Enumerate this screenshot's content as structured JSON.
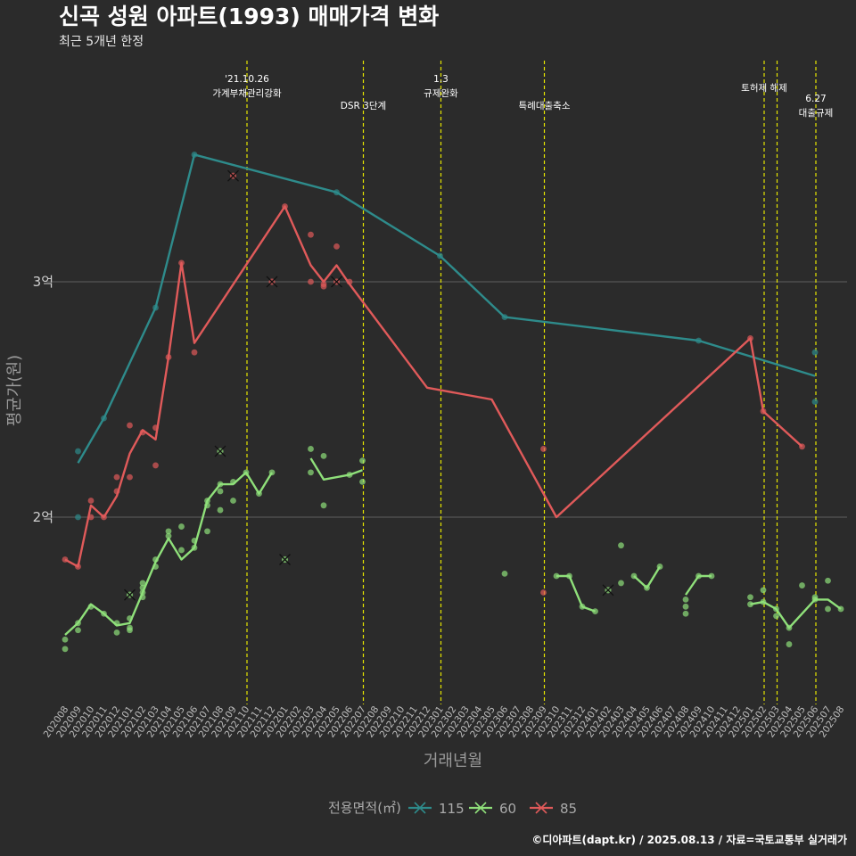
{
  "chart_data": {
    "type": "line",
    "title": "신곡 성원 아파트(1993) 매매가격 변화",
    "subtitle": "최근 5개년 한정",
    "xlabel": "거래년월",
    "ylabel": "평균가(원)",
    "caption": "©디아파트(dapt.kr) / 2025.08.13 / 자료=국토교통부 실거래가",
    "categories": [
      "202008",
      "202009",
      "202010",
      "202011",
      "202012",
      "202101",
      "202102",
      "202103",
      "202104",
      "202105",
      "202106",
      "202107",
      "202108",
      "202109",
      "202110",
      "202111",
      "202112",
      "202201",
      "202202",
      "202203",
      "202204",
      "202205",
      "202206",
      "202207",
      "202208",
      "202209",
      "202210",
      "202211",
      "202212",
      "202301",
      "202302",
      "202303",
      "202304",
      "202305",
      "202306",
      "202307",
      "202308",
      "202309",
      "202310",
      "202311",
      "202312",
      "202401",
      "202402",
      "202403",
      "202404",
      "202405",
      "202406",
      "202407",
      "202408",
      "202409",
      "202410",
      "202411",
      "202412",
      "202501",
      "202502",
      "202503",
      "202504",
      "202505",
      "202506",
      "202507",
      "202508"
    ],
    "y_ticks": [
      {
        "value": 20000,
        "label": "2억"
      },
      {
        "value": 30000,
        "label": "3억"
      }
    ],
    "ylim": [
      12000,
      38000
    ],
    "grid": true,
    "legend": {
      "title": "전용면적(㎡)",
      "position": "bottom"
    },
    "events": [
      {
        "month": "202110",
        "lines": [
          "'21.10.26",
          "가계부채관리강화"
        ]
      },
      {
        "month": "202207",
        "lines": [
          "DSR 3단계"
        ]
      },
      {
        "month": "202301",
        "lines": [
          "1.3",
          "규제완화"
        ]
      },
      {
        "month": "202309",
        "lines": [
          "특례대출축소"
        ]
      },
      {
        "month": "202502",
        "lines": [
          "토허제 해제"
        ]
      },
      {
        "month": "202503",
        "lines": [
          ""
        ]
      },
      {
        "month": "202506",
        "lines": [
          "6.27",
          "대출규제"
        ]
      }
    ],
    "series": [
      {
        "name": "115",
        "color": "#2e8b8b",
        "line": [
          [
            1,
            22300
          ],
          [
            3,
            24200
          ],
          [
            7,
            28900
          ],
          [
            10,
            35400
          ],
          [
            21,
            33800
          ],
          [
            29,
            31100
          ],
          [
            34,
            28500
          ],
          [
            49,
            27500
          ],
          [
            58,
            26000
          ]
        ],
        "points": [
          [
            1,
            22800
          ],
          [
            1,
            20000
          ],
          [
            3,
            24200
          ],
          [
            7,
            28900
          ],
          [
            10,
            35400
          ],
          [
            21,
            33800
          ],
          [
            29,
            31100
          ],
          [
            34,
            28500
          ],
          [
            49,
            27500
          ],
          [
            58,
            27000
          ],
          [
            58,
            24900
          ]
        ],
        "crosses": []
      },
      {
        "name": "60",
        "color": "#8fe07a",
        "line": [
          [
            [
              0,
              15000
            ],
            [
              1,
              15500
            ],
            [
              2,
              16300
            ],
            [
              3,
              15900
            ],
            [
              4,
              15400
            ],
            [
              5,
              15500
            ],
            [
              6,
              16800
            ],
            [
              7,
              18100
            ],
            [
              8,
              19100
            ],
            [
              9,
              18200
            ],
            [
              10,
              18700
            ],
            [
              11,
              20700
            ],
            [
              12,
              21400
            ],
            [
              13,
              21400
            ],
            [
              14,
              21900
            ],
            [
              15,
              21000
            ],
            [
              16,
              21900
            ]
          ],
          [
            [
              19,
              22500
            ],
            [
              20,
              21600
            ],
            [
              22,
              21800
            ],
            [
              23,
              22000
            ]
          ],
          [
            [
              38,
              17500
            ],
            [
              39,
              17500
            ],
            [
              40,
              16200
            ],
            [
              41,
              16000
            ]
          ],
          [
            [
              44,
              17500
            ],
            [
              45,
              17000
            ],
            [
              46,
              17900
            ]
          ],
          [
            [
              48,
              16700
            ],
            [
              49,
              17500
            ],
            [
              50,
              17500
            ]
          ],
          [
            [
              53,
              16300
            ],
            [
              54,
              16400
            ],
            [
              55,
              16100
            ],
            [
              56,
              15300
            ],
            [
              58,
              16500
            ],
            [
              59,
              16500
            ],
            [
              60,
              16100
            ]
          ]
        ],
        "points": [
          [
            0,
            14800
          ],
          [
            0,
            14400
          ],
          [
            1,
            15500
          ],
          [
            1,
            15200
          ],
          [
            2,
            16200
          ],
          [
            3,
            15900
          ],
          [
            4,
            15500
          ],
          [
            4,
            15100
          ],
          [
            5,
            15700
          ],
          [
            5,
            15200
          ],
          [
            5,
            15300
          ],
          [
            6,
            16800
          ],
          [
            6,
            16600
          ],
          [
            6,
            17000
          ],
          [
            6,
            17200
          ],
          [
            7,
            17900
          ],
          [
            7,
            18200
          ],
          [
            8,
            19400
          ],
          [
            8,
            19200
          ],
          [
            9,
            18600
          ],
          [
            9,
            19600
          ],
          [
            10,
            18700
          ],
          [
            10,
            19000
          ],
          [
            11,
            20700
          ],
          [
            11,
            20500
          ],
          [
            11,
            19400
          ],
          [
            12,
            21100
          ],
          [
            12,
            20300
          ],
          [
            12,
            21400
          ],
          [
            13,
            20700
          ],
          [
            13,
            21500
          ],
          [
            14,
            21900
          ],
          [
            15,
            21000
          ],
          [
            16,
            21900
          ],
          [
            19,
            22900
          ],
          [
            19,
            21900
          ],
          [
            20,
            22600
          ],
          [
            20,
            20500
          ],
          [
            22,
            21800
          ],
          [
            23,
            22400
          ],
          [
            23,
            21500
          ],
          [
            34,
            17600
          ],
          [
            38,
            17500
          ],
          [
            39,
            17500
          ],
          [
            40,
            16200
          ],
          [
            41,
            16000
          ],
          [
            43,
            18800
          ],
          [
            43,
            17200
          ],
          [
            44,
            17500
          ],
          [
            45,
            17000
          ],
          [
            46,
            17900
          ],
          [
            48,
            16500
          ],
          [
            48,
            16200
          ],
          [
            48,
            15900
          ],
          [
            49,
            17500
          ],
          [
            50,
            17500
          ],
          [
            53,
            16300
          ],
          [
            53,
            16600
          ],
          [
            54,
            16400
          ],
          [
            54,
            16900
          ],
          [
            55,
            16100
          ],
          [
            55,
            15800
          ],
          [
            56,
            15300
          ],
          [
            56,
            14600
          ],
          [
            57,
            17100
          ],
          [
            58,
            16500
          ],
          [
            58,
            16600
          ],
          [
            59,
            17300
          ],
          [
            59,
            16100
          ],
          [
            60,
            16100
          ]
        ],
        "crosses": [
          [
            5,
            16700
          ],
          [
            12,
            22800
          ],
          [
            17,
            18200
          ],
          [
            42,
            16900
          ]
        ]
      },
      {
        "name": "85",
        "color": "#e05a5a",
        "line": [
          [
            0,
            18200
          ],
          [
            1,
            17900
          ],
          [
            2,
            20500
          ],
          [
            3,
            20000
          ],
          [
            4,
            20900
          ],
          [
            5,
            22700
          ],
          [
            6,
            23700
          ],
          [
            7,
            23300
          ],
          [
            8,
            26800
          ],
          [
            9,
            30800
          ],
          [
            10,
            27400
          ],
          [
            17,
            33200
          ],
          [
            19,
            30700
          ],
          [
            20,
            30000
          ],
          [
            21,
            30700
          ],
          [
            22,
            29900
          ],
          [
            28,
            25500
          ],
          [
            33,
            25000
          ],
          [
            38,
            20000
          ],
          [
            53,
            27600
          ],
          [
            54,
            24500
          ],
          [
            57,
            23000
          ]
        ],
        "points": [
          [
            0,
            18200
          ],
          [
            1,
            17900
          ],
          [
            2,
            20700
          ],
          [
            2,
            20000
          ],
          [
            3,
            20000
          ],
          [
            4,
            21100
          ],
          [
            4,
            21700
          ],
          [
            5,
            23900
          ],
          [
            5,
            21700
          ],
          [
            6,
            23600
          ],
          [
            7,
            22200
          ],
          [
            7,
            23800
          ],
          [
            8,
            26800
          ],
          [
            9,
            30800
          ],
          [
            10,
            27000
          ],
          [
            17,
            33200
          ],
          [
            19,
            32000
          ],
          [
            19,
            30000
          ],
          [
            20,
            29800
          ],
          [
            20,
            29900
          ],
          [
            21,
            31500
          ],
          [
            22,
            30000
          ],
          [
            37,
            22900
          ],
          [
            37,
            16800
          ],
          [
            53,
            27600
          ],
          [
            54,
            24500
          ],
          [
            57,
            23000
          ]
        ],
        "crosses": [
          [
            13,
            34500
          ],
          [
            16,
            30000
          ],
          [
            21,
            30000
          ]
        ]
      }
    ]
  }
}
